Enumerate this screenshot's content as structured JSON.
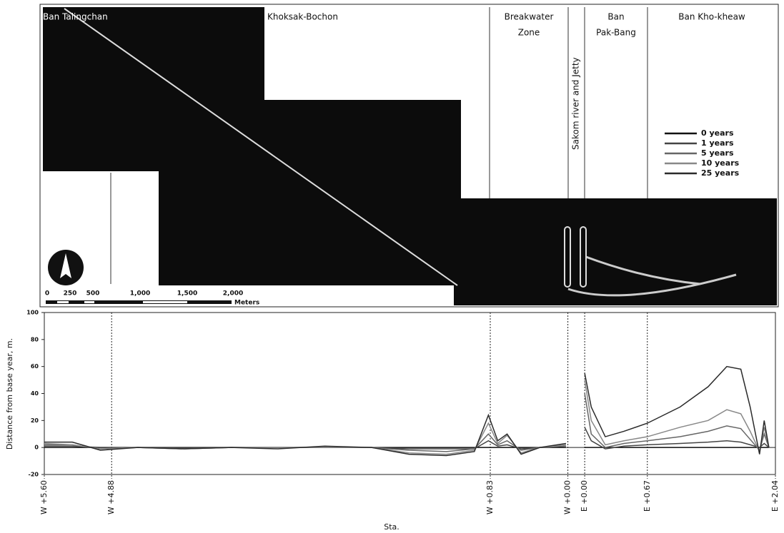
{
  "map": {
    "zones": [
      [
        "Ban Talingchan"
      ],
      [
        "Khoksak-Bochon"
      ],
      [
        "Breakwater",
        "Zone"
      ],
      [
        "Sakom river and Jetty"
      ],
      [
        "Ban",
        "Pak-Bang"
      ],
      [
        "Ban Kho-kheaw"
      ]
    ],
    "scale_labels": [
      "0",
      "250",
      "500",
      "1,000",
      "1,500",
      "2,000"
    ],
    "scale_unit": "Meters"
  },
  "chart_data": {
    "type": "line",
    "y_label": "Distance from base year, m.",
    "x_label": "Sta.",
    "xlim": [
      0,
      7.82
    ],
    "xticks": [
      {
        "value": 0,
        "label": "W +5.60"
      },
      {
        "value": 0.72,
        "label": "W +4.88"
      },
      {
        "value": 4.77,
        "label": "W +0.83"
      },
      {
        "value": 5.6,
        "label": "W +0.00"
      },
      {
        "value": 5.78,
        "label": "E +0.00"
      },
      {
        "value": 6.45,
        "label": "E +0.67"
      },
      {
        "value": 7.82,
        "label": "E +2.04"
      }
    ],
    "ylim": [
      -20,
      100
    ],
    "yticks": [
      -20,
      0,
      20,
      40,
      60,
      80,
      100
    ],
    "x": [
      0,
      0.3,
      0.6,
      1.0,
      1.5,
      2.0,
      2.5,
      3.0,
      3.5,
      3.9,
      4.3,
      4.6,
      4.75,
      4.85,
      4.95,
      5.1,
      5.3,
      5.58,
      5.69,
      5.78,
      5.85,
      6.0,
      6.2,
      6.45,
      6.8,
      7.1,
      7.3,
      7.45,
      7.55,
      7.65,
      7.7,
      7.75
    ],
    "series": [
      {
        "name": "0 years",
        "color": "#111111",
        "values": [
          0,
          0,
          0,
          0,
          0,
          0,
          0,
          0,
          0,
          0,
          0,
          0,
          0,
          0,
          0,
          0,
          0,
          0,
          null,
          0,
          0,
          0,
          0,
          0,
          0,
          0,
          0,
          0,
          0,
          0,
          0,
          0
        ]
      },
      {
        "name": "1 years",
        "color": "#444444",
        "values": [
          1,
          1,
          0,
          0,
          0,
          0,
          0,
          0,
          0,
          -1,
          -1,
          -1,
          5,
          1,
          2,
          -1,
          0,
          1,
          null,
          15,
          5,
          -1,
          1,
          2,
          3,
          4,
          5,
          4,
          2,
          0,
          3,
          0
        ]
      },
      {
        "name": "5 years",
        "color": "#666666",
        "values": [
          2,
          2,
          -1,
          0,
          -1,
          0,
          0,
          0,
          0,
          -2,
          -3,
          -1,
          10,
          2,
          5,
          -2,
          0,
          1,
          null,
          40,
          10,
          0,
          3,
          5,
          8,
          12,
          16,
          14,
          6,
          -2,
          10,
          0
        ]
      },
      {
        "name": "10 years",
        "color": "#888888",
        "values": [
          3,
          2,
          -1,
          0,
          -1,
          0,
          0,
          0,
          0,
          -4,
          -5,
          -2,
          18,
          3,
          9,
          -4,
          0,
          2,
          null,
          50,
          20,
          2,
          5,
          8,
          15,
          20,
          28,
          25,
          12,
          -3,
          15,
          0
        ]
      },
      {
        "name": "25 years",
        "color": "#2a2a2a",
        "values": [
          4,
          4,
          -2,
          0,
          -1,
          0,
          -1,
          1,
          0,
          -5,
          -6,
          -3,
          24,
          5,
          10,
          -5,
          0,
          3,
          null,
          55,
          30,
          8,
          12,
          18,
          30,
          45,
          60,
          58,
          30,
          -5,
          20,
          0
        ]
      }
    ]
  }
}
